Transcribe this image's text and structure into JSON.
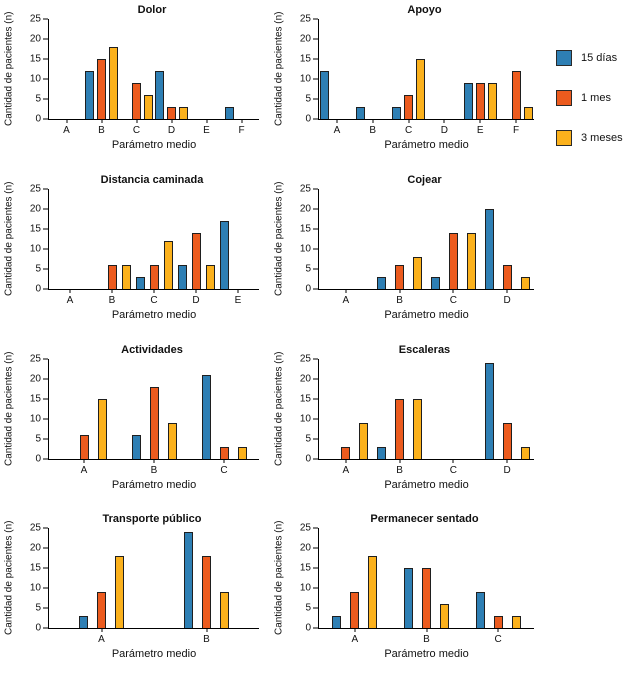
{
  "figure": {
    "background": "#ffffff"
  },
  "legend": {
    "position": "right",
    "items": [
      {
        "label": "15 días",
        "color": "#2E7FB4"
      },
      {
        "label": "1 mes",
        "color": "#EC5B1E"
      },
      {
        "label": "3 meses",
        "color": "#FBB11C"
      }
    ]
  },
  "chart_data": [
    {
      "type": "bar",
      "title": "Dolor",
      "xlabel": "Parámetro medio",
      "ylabel": "Cantidad de pacientes (n)",
      "ylim": [
        0,
        25
      ],
      "yticks": [
        0,
        5,
        10,
        15,
        20,
        25
      ],
      "grid": false,
      "categories": [
        "A",
        "B",
        "C",
        "D",
        "E",
        "F"
      ],
      "series": [
        {
          "name": "15 días",
          "values": [
            0,
            12,
            0,
            12,
            0,
            3
          ]
        },
        {
          "name": "1 mes",
          "values": [
            0,
            15,
            9,
            3,
            0,
            0
          ]
        },
        {
          "name": "3 meses",
          "values": [
            0,
            18,
            6,
            3,
            0,
            0
          ]
        }
      ]
    },
    {
      "type": "bar",
      "title": "Apoyo",
      "xlabel": "Parámetro medio",
      "ylabel": "Cantidad de pacientes (n)",
      "ylim": [
        0,
        25
      ],
      "yticks": [
        0,
        5,
        10,
        15,
        20,
        25
      ],
      "grid": false,
      "categories": [
        "A",
        "B",
        "C",
        "D",
        "E",
        "F"
      ],
      "series": [
        {
          "name": "15 días",
          "values": [
            12,
            3,
            3,
            0,
            9,
            0
          ]
        },
        {
          "name": "1 mes",
          "values": [
            0,
            0,
            6,
            0,
            9,
            12
          ]
        },
        {
          "name": "3 meses",
          "values": [
            0,
            0,
            15,
            0,
            9,
            3
          ]
        }
      ]
    },
    {
      "type": "bar",
      "title": "Distancia caminada",
      "xlabel": "Parámetro medio",
      "ylabel": "Cantidad de pacientes (n)",
      "ylim": [
        0,
        25
      ],
      "yticks": [
        0,
        5,
        10,
        15,
        20,
        25
      ],
      "grid": false,
      "categories": [
        "A",
        "B",
        "C",
        "D",
        "E"
      ],
      "series": [
        {
          "name": "15 días",
          "values": [
            0,
            0,
            3,
            6,
            17
          ]
        },
        {
          "name": "1 mes",
          "values": [
            0,
            6,
            6,
            14,
            0
          ]
        },
        {
          "name": "3 meses",
          "values": [
            0,
            6,
            12,
            6,
            0
          ]
        }
      ]
    },
    {
      "type": "bar",
      "title": "Cojear",
      "xlabel": "Parámetro medio",
      "ylabel": "Cantidad de pacientes (n)",
      "ylim": [
        0,
        25
      ],
      "yticks": [
        0,
        5,
        10,
        15,
        20,
        25
      ],
      "grid": false,
      "categories": [
        "A",
        "B",
        "C",
        "D"
      ],
      "series": [
        {
          "name": "15 días",
          "values": [
            0,
            3,
            3,
            20
          ]
        },
        {
          "name": "1 mes",
          "values": [
            0,
            6,
            14,
            6
          ]
        },
        {
          "name": "3 meses",
          "values": [
            0,
            8,
            14,
            3
          ]
        }
      ]
    },
    {
      "type": "bar",
      "title": "Actividades",
      "xlabel": "Parámetro medio",
      "ylabel": "Cantidad de pacientes (n)",
      "ylim": [
        0,
        25
      ],
      "yticks": [
        0,
        5,
        10,
        15,
        20,
        25
      ],
      "grid": false,
      "categories": [
        "A",
        "B",
        "C"
      ],
      "series": [
        {
          "name": "15 días",
          "values": [
            0,
            6,
            21
          ]
        },
        {
          "name": "1 mes",
          "values": [
            6,
            18,
            3
          ]
        },
        {
          "name": "3 meses",
          "values": [
            15,
            9,
            3
          ]
        }
      ]
    },
    {
      "type": "bar",
      "title": "Escaleras",
      "xlabel": "Parámetro medio",
      "ylabel": "Cantidad de pacientes (n)",
      "ylim": [
        0,
        25
      ],
      "yticks": [
        0,
        5,
        10,
        15,
        20,
        25
      ],
      "grid": false,
      "categories": [
        "A",
        "B",
        "C",
        "D"
      ],
      "series": [
        {
          "name": "15 días",
          "values": [
            0,
            3,
            0,
            24
          ]
        },
        {
          "name": "1 mes",
          "values": [
            3,
            15,
            0,
            9
          ]
        },
        {
          "name": "3 meses",
          "values": [
            9,
            15,
            0,
            3
          ]
        }
      ]
    },
    {
      "type": "bar",
      "title": "Transporte público",
      "xlabel": "Parámetro medio",
      "ylabel": "Cantidad de pacientes (n)",
      "ylim": [
        0,
        25
      ],
      "yticks": [
        0,
        5,
        10,
        15,
        20,
        25
      ],
      "grid": false,
      "categories": [
        "A",
        "B"
      ],
      "series": [
        {
          "name": "15 días",
          "values": [
            3,
            24
          ]
        },
        {
          "name": "1 mes",
          "values": [
            9,
            18
          ]
        },
        {
          "name": "3 meses",
          "values": [
            18,
            9
          ]
        }
      ]
    },
    {
      "type": "bar",
      "title": "Permanecer sentado",
      "xlabel": "Parámetro medio",
      "ylabel": "Cantidad de pacientes (n)",
      "ylim": [
        0,
        25
      ],
      "yticks": [
        0,
        5,
        10,
        15,
        20,
        25
      ],
      "grid": false,
      "categories": [
        "A",
        "B",
        "C"
      ],
      "series": [
        {
          "name": "15 días",
          "values": [
            3,
            15,
            9
          ]
        },
        {
          "name": "1 mes",
          "values": [
            9,
            15,
            3
          ]
        },
        {
          "name": "3 meses",
          "values": [
            18,
            6,
            3
          ]
        }
      ]
    }
  ]
}
